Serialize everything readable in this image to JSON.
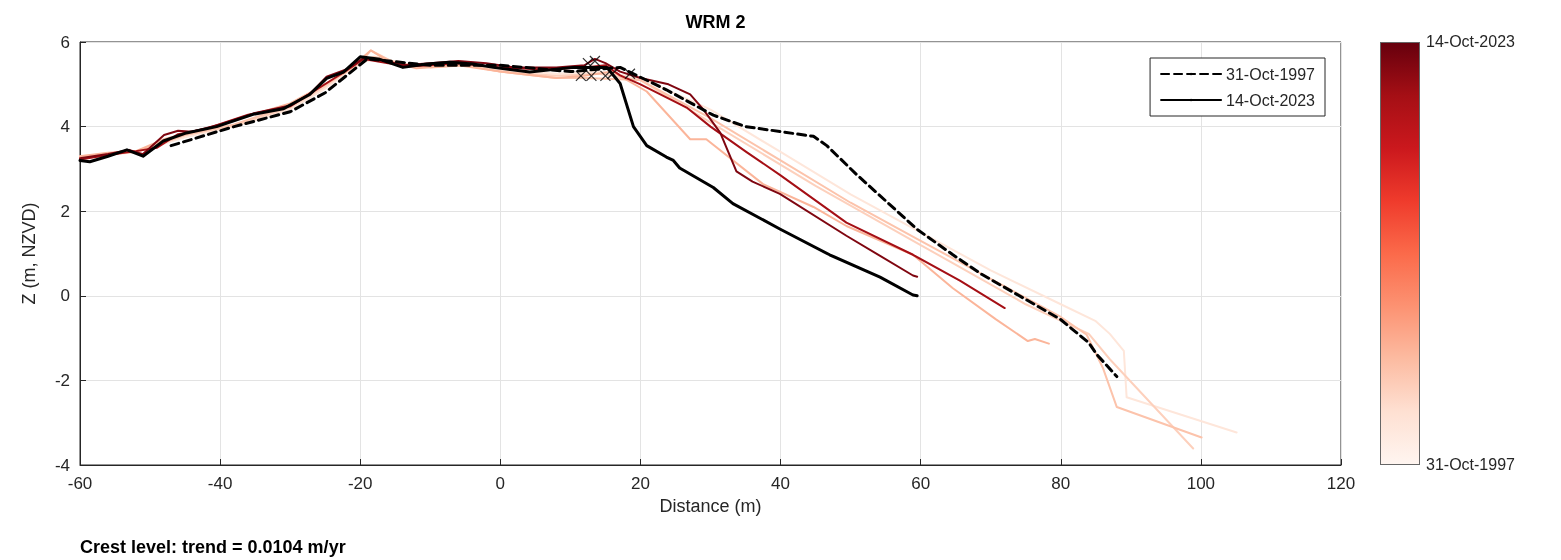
{
  "chart_data": {
    "type": "line",
    "title": "WRM 2",
    "xlabel": "Distance (m)",
    "ylabel": "Z (m, NZVD)",
    "xlim": [
      -60,
      120
    ],
    "xticks": [
      -60,
      -40,
      -20,
      0,
      20,
      40,
      60,
      80,
      100,
      120
    ],
    "ylim": [
      -4,
      6
    ],
    "yticks": [
      -4,
      -2,
      0,
      2,
      4,
      6
    ],
    "grid": true,
    "legend": "top right",
    "marker": "none",
    "clim": [
      "1997-10-31",
      "2023-10-14"
    ],
    "cticks": [
      {
        "value": "1997-10-31",
        "label": "31-Oct-1997"
      },
      {
        "value": "2023-10-14",
        "label": "14-Oct-2023"
      }
    ],
    "annotations": [
      "Crest level: trend = 0.0104 m/yr"
    ],
    "series": [
      {
        "color": "#fee6da",
        "x": [
          -60,
          -52,
          -45,
          -38,
          -30,
          -25,
          -20,
          -18,
          -12,
          -5,
          0,
          8,
          14,
          20,
          30,
          40,
          50,
          60,
          70,
          80,
          85,
          87,
          89,
          89.4,
          105.1
        ],
        "values": [
          3.25,
          3.4,
          3.75,
          4.0,
          4.4,
          4.9,
          5.5,
          5.6,
          5.4,
          5.45,
          5.35,
          5.25,
          5.3,
          5.15,
          4.4,
          3.4,
          2.4,
          1.5,
          0.6,
          -0.2,
          -0.6,
          -0.9,
          -1.3,
          -2.4,
          -3.23
        ]
      },
      {
        "color": "#fdd0bc",
        "x": [
          -60,
          -52,
          -45,
          -38,
          -30,
          -25,
          -20,
          -18,
          -12,
          -5,
          0,
          8,
          14,
          20,
          30,
          45,
          60,
          75,
          84,
          87,
          98.9
        ],
        "values": [
          3.28,
          3.42,
          3.8,
          4.02,
          4.45,
          4.95,
          5.55,
          5.65,
          5.42,
          5.45,
          5.3,
          5.2,
          5.25,
          5.1,
          4.1,
          2.6,
          1.2,
          -0.2,
          -0.9,
          -1.5,
          -3.61
        ]
      },
      {
        "color": "#fcc3ab",
        "x": [
          -60,
          -52,
          -45,
          -38,
          -30,
          -25,
          -20,
          -18.5,
          -15,
          -10,
          -5,
          0,
          8,
          12,
          20,
          30,
          40,
          50,
          60,
          70,
          80,
          83.7,
          86,
          88,
          100.1
        ],
        "values": [
          3.3,
          3.4,
          3.8,
          4.05,
          4.5,
          5.0,
          5.5,
          5.8,
          5.5,
          5.4,
          5.45,
          5.3,
          5.15,
          5.15,
          5.1,
          4.2,
          3.2,
          2.2,
          1.3,
          0.4,
          -0.5,
          -0.92,
          -1.7,
          -2.63,
          -3.35
        ]
      },
      {
        "color": "#fbb59a",
        "x": [
          -60,
          -56,
          -52,
          -48,
          -44,
          -40,
          -35,
          -30,
          -25,
          -22,
          -18.5,
          -16,
          -12,
          -6,
          0,
          8,
          12,
          16,
          20.9,
          27.1,
          29.4,
          37.5,
          44.7,
          49.4,
          58.9,
          64.6,
          70.7,
          75.3,
          76.3,
          78.3
        ],
        "values": [
          3.3,
          3.38,
          3.42,
          3.7,
          3.88,
          4.03,
          4.3,
          4.55,
          5.0,
          5.3,
          5.8,
          5.55,
          5.38,
          5.45,
          5.3,
          5.15,
          5.2,
          5.3,
          4.83,
          3.7,
          3.7,
          2.64,
          2.1,
          1.65,
          0.97,
          0.18,
          -0.55,
          -1.07,
          -1.02,
          -1.13
        ]
      },
      {
        "color": "#a50f15",
        "x": [
          -60,
          -56,
          -52,
          -49,
          -46,
          -42,
          -36,
          -30,
          -26,
          -22,
          -19.5,
          -16,
          -12,
          -6,
          0,
          6,
          12,
          15,
          17.1,
          20,
          26.6,
          30,
          35.2,
          39.9,
          49.4,
          58.9,
          65.6,
          72
        ],
        "values": [
          3.22,
          3.33,
          3.42,
          3.5,
          3.82,
          3.95,
          4.28,
          4.48,
          4.9,
          5.32,
          5.6,
          5.5,
          5.43,
          5.5,
          5.4,
          5.35,
          5.4,
          5.45,
          5.21,
          5.0,
          4.45,
          4.0,
          3.39,
          2.86,
          1.73,
          0.97,
          0.36,
          -0.29
        ]
      },
      {
        "color": "#7f0610",
        "x": [
          -60,
          -56,
          -53,
          -51,
          -48,
          -46,
          -44,
          -40,
          -35,
          -30,
          -27,
          -24.8,
          -22,
          -19.5,
          -17,
          -13.9,
          -10,
          -6,
          -2,
          2,
          8,
          12,
          13.5,
          15,
          17.1,
          20,
          24,
          27.1,
          29,
          31.4,
          33.7,
          36,
          39.9,
          49.4,
          58.9,
          59.5
        ],
        "values": [
          3.25,
          3.35,
          3.45,
          3.35,
          3.8,
          3.9,
          3.88,
          4.05,
          4.32,
          4.5,
          4.8,
          5.18,
          5.35,
          5.62,
          5.58,
          5.45,
          5.5,
          5.55,
          5.5,
          5.4,
          5.4,
          5.45,
          5.6,
          5.5,
          5.3,
          5.15,
          5.0,
          4.76,
          4.4,
          3.85,
          2.94,
          2.7,
          2.41,
          1.42,
          0.48,
          0.45
        ]
      },
      {
        "name": "31-Oct-1997",
        "color": "#000000",
        "line_style": "dashed",
        "x": [
          -47,
          -44,
          -38,
          -30,
          -25,
          -19,
          -10,
          0,
          10,
          17.1,
          23.7,
          30.4,
          35,
          44.7,
          46.6,
          50.9,
          59.5,
          64.6,
          68.7,
          79.9,
          84,
          85.1,
          88
        ],
        "values": [
          3.55,
          3.7,
          4.0,
          4.35,
          4.8,
          5.6,
          5.45,
          5.45,
          5.3,
          5.4,
          4.87,
          4.27,
          4.0,
          3.77,
          3.55,
          2.86,
          1.57,
          0.97,
          0.51,
          -0.55,
          -1.11,
          -1.38,
          -1.91
        ]
      },
      {
        "name": "14-Oct-2023",
        "color": "#000000",
        "line_style": "solid",
        "x": [
          -60,
          -58.6,
          -56,
          -53.3,
          -51,
          -48.1,
          -44.8,
          -40.5,
          -35.3,
          -31,
          -27.2,
          -24.8,
          -22.4,
          -20,
          -17.2,
          -13.9,
          -10.5,
          -7.2,
          -3.9,
          -1,
          4.2,
          10.4,
          15.2,
          17.1,
          19.0,
          20.9,
          23.7,
          24.7,
          25.6,
          30.4,
          33.2,
          39.9,
          47,
          54.2,
          58.9,
          59.5
        ],
        "values": [
          3.2,
          3.17,
          3.3,
          3.45,
          3.3,
          3.66,
          3.85,
          4.0,
          4.29,
          4.42,
          4.76,
          5.14,
          5.29,
          5.65,
          5.59,
          5.4,
          5.48,
          5.52,
          5.48,
          5.4,
          5.29,
          5.4,
          5.4,
          5.02,
          4.0,
          3.55,
          3.28,
          3.2,
          3.02,
          2.56,
          2.18,
          1.58,
          0.97,
          0.44,
          0.02,
          0.0
        ]
      },
      {
        "type": "scatter",
        "marker": "cross",
        "color": "#000000",
        "x": [
          11.5,
          12.5,
          13,
          13.5,
          15,
          16,
          18.5
        ],
        "values": [
          5.2,
          5.5,
          5.2,
          5.55,
          5.2,
          5.25,
          5.25
        ]
      }
    ]
  }
}
